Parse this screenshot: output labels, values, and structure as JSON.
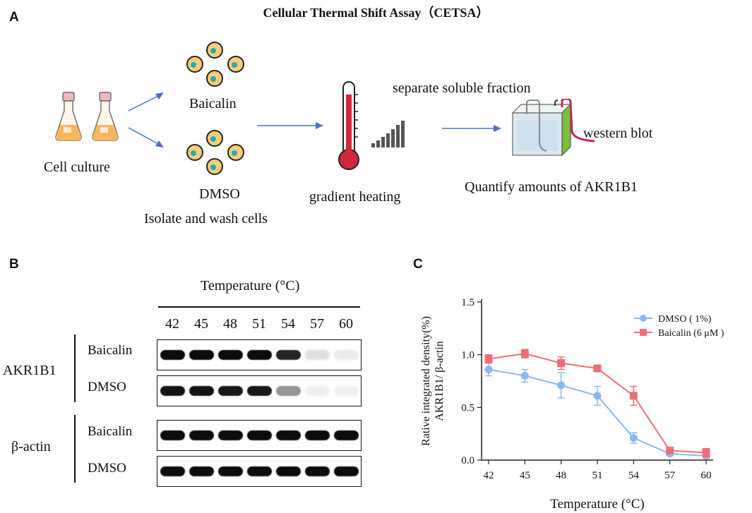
{
  "figure": {
    "title": "Cellular Thermal Shift Assay（CETSA）",
    "panel_a": {
      "letter": "A",
      "cell_culture": "Cell culture",
      "baicalin": "Baicalin",
      "dmso": "DMSO",
      "isolate": "Isolate and wash cells",
      "gradient_heating": "gradient heating",
      "separate": "separate soluble fraction",
      "western_blot": "western blot",
      "quantify": "Quantify amounts of  AKR1B1"
    },
    "panel_b": {
      "letter": "B",
      "temperature_header": "Temperature (°C)",
      "temperatures": [
        "42",
        "45",
        "48",
        "51",
        "54",
        "57",
        "60"
      ],
      "protein_akr": "AKR1B1",
      "protein_actin": "β-actin",
      "row_baicalin": "Baicalin",
      "row_dmso": "DMSO",
      "band_intensity": {
        "akr_baicalin": [
          0.95,
          0.95,
          0.95,
          0.95,
          0.85,
          0.12,
          0.08
        ],
        "akr_dmso": [
          0.92,
          0.92,
          0.9,
          0.9,
          0.4,
          0.06,
          0.05
        ],
        "actin_baicalin": [
          0.95,
          0.95,
          0.95,
          0.95,
          0.95,
          0.95,
          0.95
        ],
        "actin_dmso": [
          0.95,
          0.95,
          0.95,
          0.95,
          0.95,
          0.95,
          0.95
        ]
      }
    },
    "panel_c": {
      "letter": "C"
    }
  },
  "chart_data": {
    "type": "line",
    "x": [
      42,
      45,
      48,
      51,
      54,
      57,
      60
    ],
    "xticks": [
      "42",
      "45",
      "48",
      "51",
      "54",
      "57",
      "60"
    ],
    "yticks": [
      "0.0",
      "0.5",
      "1.0",
      "1.5"
    ],
    "ylim": [
      0,
      1.5
    ],
    "xlabel": "Temperature (°C)",
    "ylabel_line1": "Rative integrated density(%)",
    "ylabel_line2": "AKR1B1/ β-actin",
    "legend_position": "top-right",
    "series": [
      {
        "name": "DMSO ( 1%)",
        "color": "#8bb8ec",
        "marker": "circle",
        "values": [
          0.86,
          0.8,
          0.71,
          0.61,
          0.21,
          0.06,
          0.04
        ],
        "errors": [
          0.06,
          0.06,
          0.12,
          0.09,
          0.05,
          0.02,
          0.02
        ]
      },
      {
        "name": "Baicalin (6 μM )",
        "color": "#f06e78",
        "marker": "square",
        "values": [
          0.96,
          1.01,
          0.92,
          0.87,
          0.61,
          0.09,
          0.07
        ],
        "errors": [
          0.04,
          0.04,
          0.06,
          0.02,
          0.09,
          0.02,
          0.04
        ]
      }
    ]
  }
}
